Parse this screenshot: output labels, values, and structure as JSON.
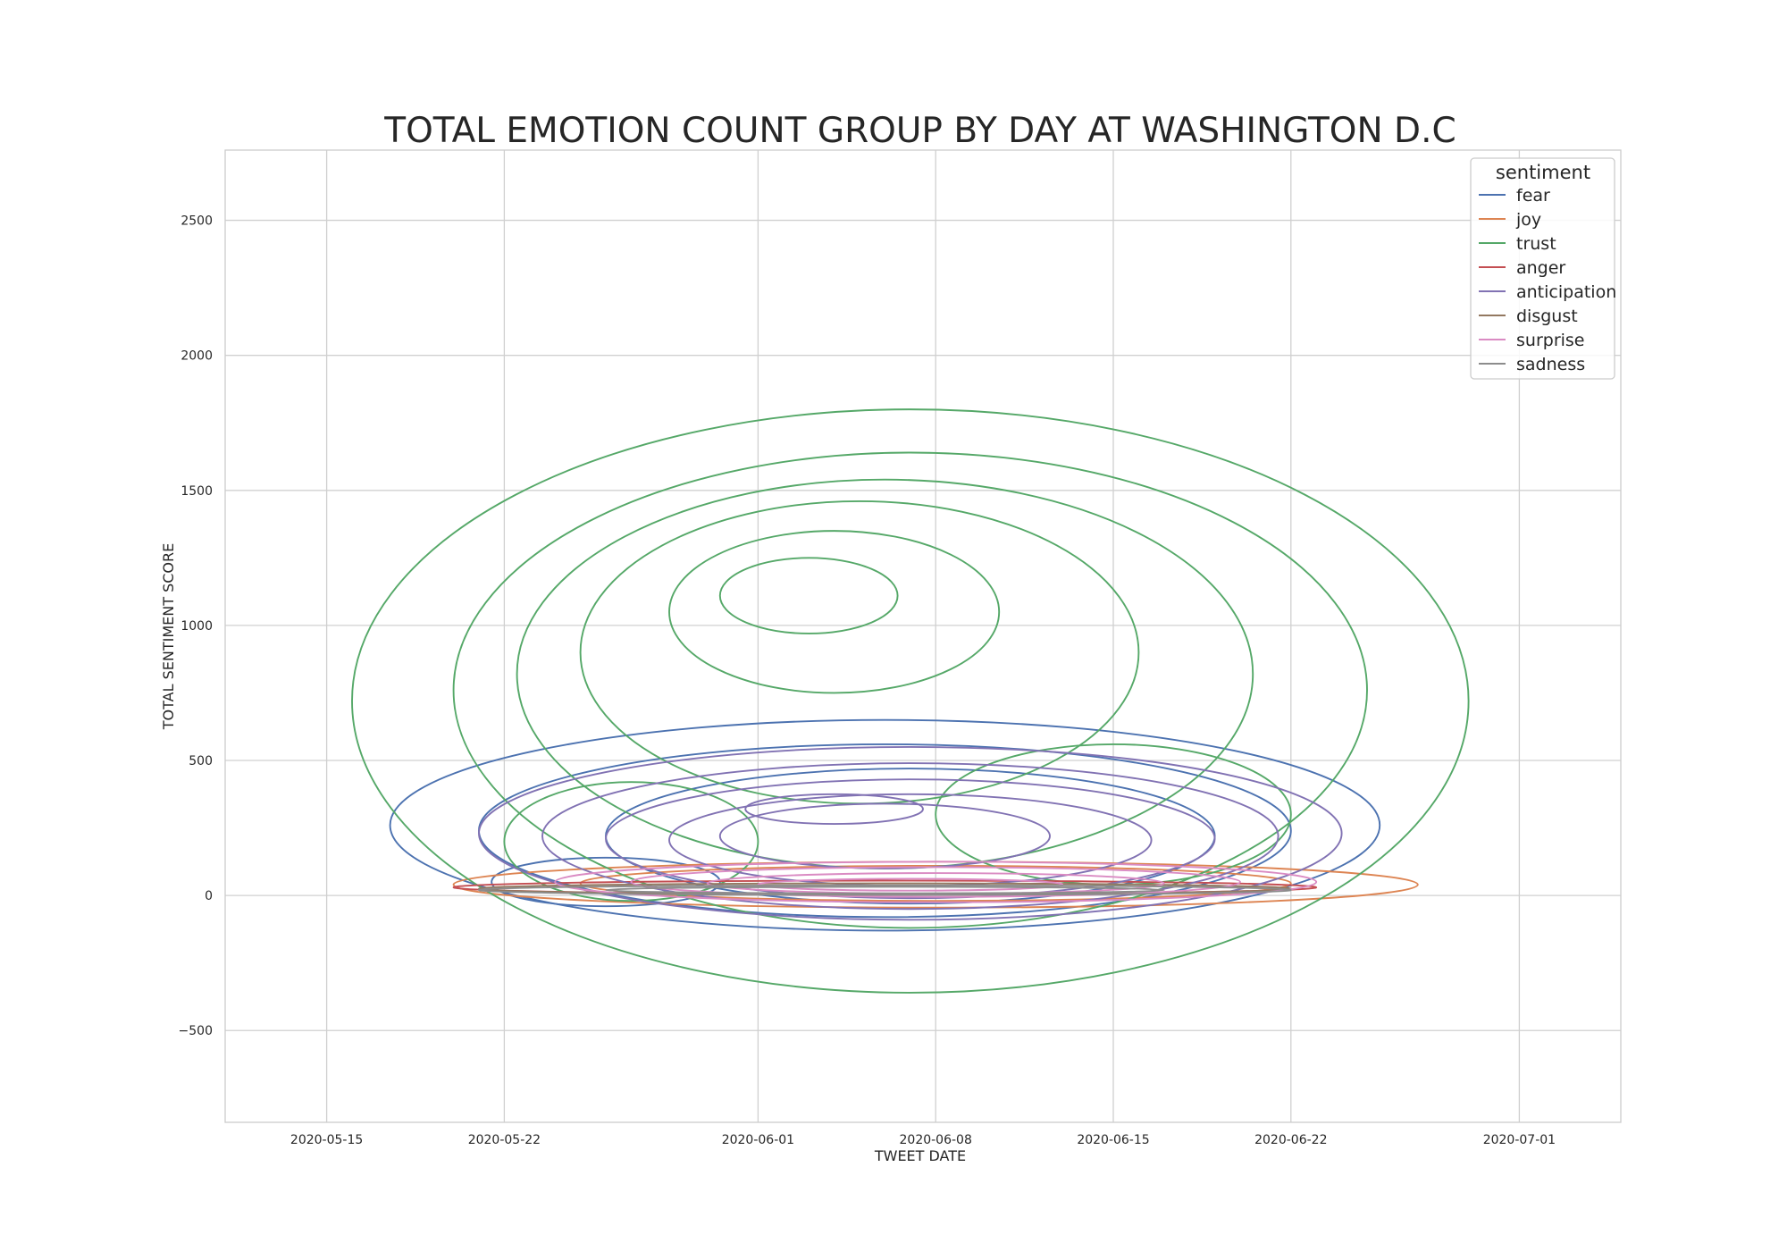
{
  "chart_data": {
    "type": "kde-contour",
    "title": "TOTAL EMOTION COUNT GROUP BY DAY AT WASHINGTON D.C",
    "xlabel": "TWEET DATE",
    "ylabel": "TOTAL SENTIMENT SCORE",
    "xlim": [
      "2020-05-11",
      "2020-07-05"
    ],
    "ylim": [
      -840,
      2760
    ],
    "x_ticks": [
      "2020-05-15",
      "2020-05-22",
      "2020-06-01",
      "2020-06-08",
      "2020-06-15",
      "2020-06-22",
      "2020-07-01"
    ],
    "y_ticks": [
      2500,
      2000,
      1500,
      1000,
      500,
      0,
      -500
    ],
    "y_tick_labels": [
      "2500",
      "2000",
      "1500",
      "1000",
      "500",
      "0",
      "−500"
    ],
    "grid": true,
    "legend": {
      "title": "sentiment",
      "placement": "top-right"
    },
    "series": [
      {
        "name": "fear",
        "color": "#4c72b0",
        "contours": [
          {
            "cx": "2020-06-06",
            "cy": 260,
            "rx_days": 19.5,
            "ry": 390
          },
          {
            "cx": "2020-06-06",
            "cy": 240,
            "rx_days": 16,
            "ry": 320
          },
          {
            "cx": "2020-06-07",
            "cy": 220,
            "rx_days": 12,
            "ry": 250
          },
          {
            "cx": "2020-05-26",
            "cy": 50,
            "rx_days": 4.5,
            "ry": 90
          }
        ]
      },
      {
        "name": "joy",
        "color": "#dd8452",
        "contours": [
          {
            "cx": "2020-06-08",
            "cy": 40,
            "rx_days": 19,
            "ry": 85
          },
          {
            "cx": "2020-06-08",
            "cy": 45,
            "rx_days": 14,
            "ry": 65
          }
        ]
      },
      {
        "name": "trust",
        "color": "#55a868",
        "contours": [
          {
            "cx": "2020-06-07",
            "cy": 720,
            "rx_days": 22,
            "ry": 1080
          },
          {
            "cx": "2020-06-07",
            "cy": 760,
            "rx_days": 18,
            "ry": 880
          },
          {
            "cx": "2020-06-06",
            "cy": 820,
            "rx_days": 14.5,
            "ry": 720
          },
          {
            "cx": "2020-06-05",
            "cy": 900,
            "rx_days": 11,
            "ry": 560
          },
          {
            "cx": "2020-06-04",
            "cy": 1050,
            "rx_days": 6.5,
            "ry": 300
          },
          {
            "cx": "2020-06-03",
            "cy": 1110,
            "rx_days": 3.5,
            "ry": 140
          },
          {
            "cx": "2020-06-15",
            "cy": 300,
            "rx_days": 7,
            "ry": 260
          },
          {
            "cx": "2020-05-27",
            "cy": 200,
            "rx_days": 5,
            "ry": 220
          }
        ]
      },
      {
        "name": "anger",
        "color": "#c44e52",
        "contours": [
          {
            "cx": "2020-06-06",
            "cy": 30,
            "rx_days": 17,
            "ry": 25
          }
        ]
      },
      {
        "name": "anticipation",
        "color": "#8172b3",
        "contours": [
          {
            "cx": "2020-06-07",
            "cy": 230,
            "rx_days": 17,
            "ry": 320
          },
          {
            "cx": "2020-06-07",
            "cy": 220,
            "rx_days": 14.5,
            "ry": 270
          },
          {
            "cx": "2020-06-07",
            "cy": 210,
            "rx_days": 12,
            "ry": 220
          },
          {
            "cx": "2020-06-07",
            "cy": 205,
            "rx_days": 9.5,
            "ry": 170
          },
          {
            "cx": "2020-06-06",
            "cy": 220,
            "rx_days": 6.5,
            "ry": 120
          },
          {
            "cx": "2020-06-04",
            "cy": 320,
            "rx_days": 3.5,
            "ry": 55
          }
        ]
      },
      {
        "name": "disgust",
        "color": "#937860",
        "contours": [
          {
            "cx": "2020-06-06",
            "cy": 25,
            "rx_days": 16,
            "ry": 20
          }
        ]
      },
      {
        "name": "surprise",
        "color": "#da8bc3",
        "contours": [
          {
            "cx": "2020-06-08",
            "cy": 50,
            "rx_days": 15,
            "ry": 75
          },
          {
            "cx": "2020-06-08",
            "cy": 50,
            "rx_days": 12,
            "ry": 55
          },
          {
            "cx": "2020-06-08",
            "cy": 45,
            "rx_days": 9,
            "ry": 38
          },
          {
            "cx": "2020-06-07",
            "cy": 40,
            "rx_days": 6,
            "ry": 22
          }
        ]
      },
      {
        "name": "sadness",
        "color": "#8c8c8c",
        "contours": [
          {
            "cx": "2020-06-06",
            "cy": 20,
            "rx_days": 16,
            "ry": 18
          },
          {
            "cx": "2020-06-06",
            "cy": 20,
            "rx_days": 11,
            "ry": 12
          }
        ]
      }
    ]
  }
}
